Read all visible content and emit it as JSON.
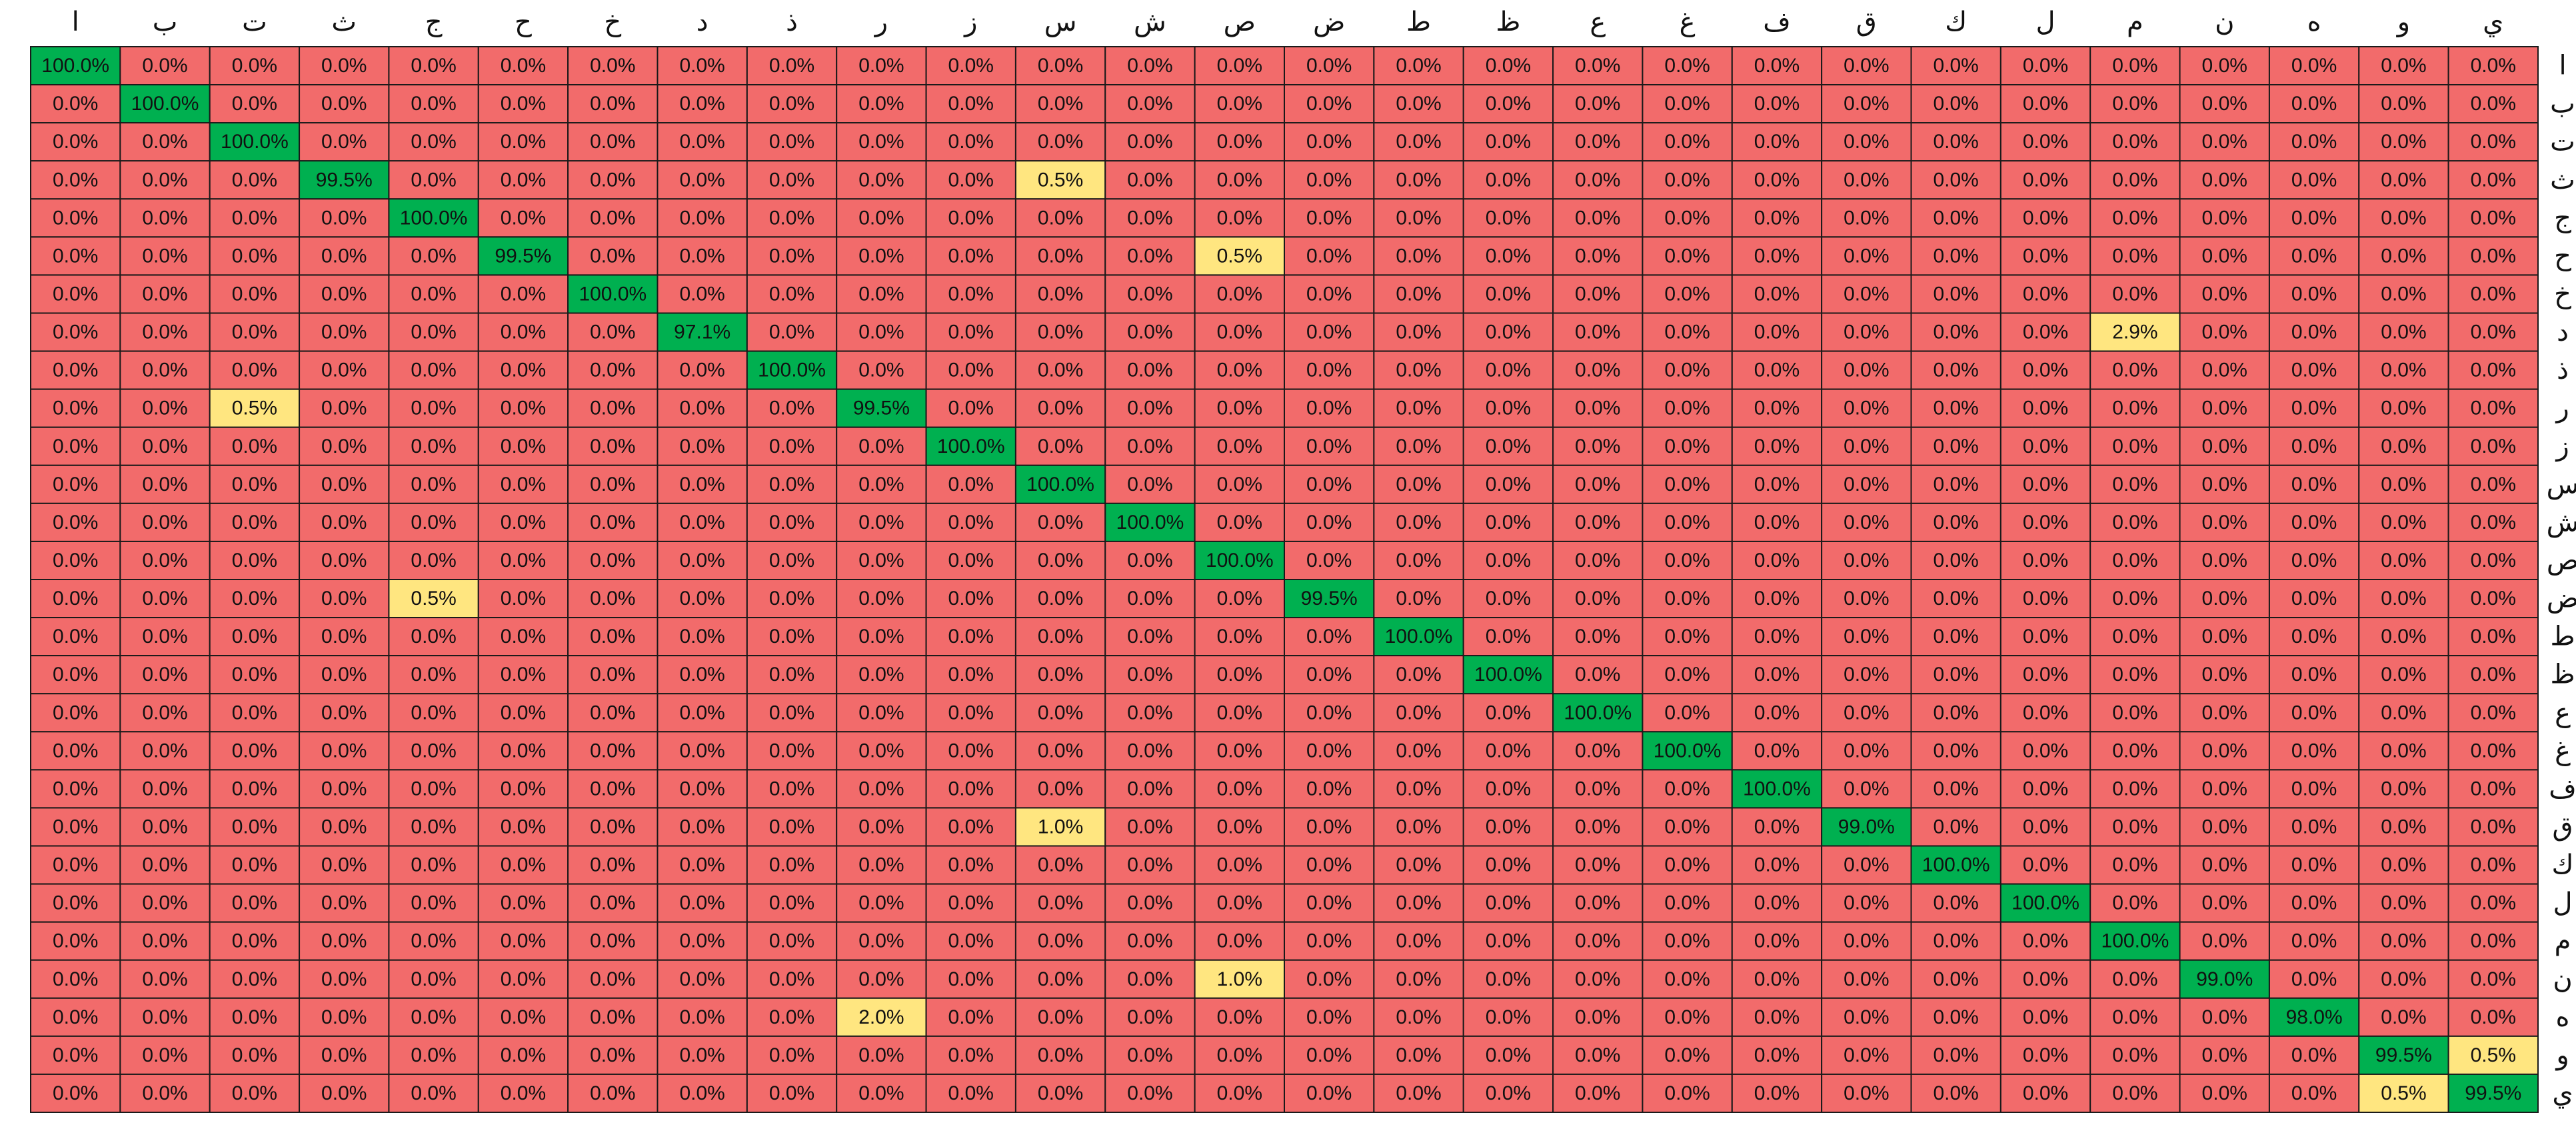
{
  "chart_data": {
    "type": "heatmap",
    "title": "",
    "xlabel": "",
    "ylabel": "",
    "categories": [
      "ا",
      "ب",
      "ت",
      "ث",
      "ج",
      "ح",
      "خ",
      "د",
      "ذ",
      "ر",
      "ز",
      "س",
      "ش",
      "ص",
      "ض",
      "ط",
      "ظ",
      "ع",
      "غ",
      "ف",
      "ق",
      "ك",
      "ل",
      "م",
      "ن",
      "ه",
      "و",
      "ي"
    ],
    "column_labels": [
      "ا",
      "ب",
      "ت",
      "ث",
      "ج",
      "ح",
      "خ",
      "د",
      "ذ",
      "ر",
      "ز",
      "س",
      "ش",
      "ص",
      "ض",
      "ط",
      "ظ",
      "ع",
      "غ",
      "ف",
      "ق",
      "ك",
      "ل",
      "م",
      "ن",
      "ه",
      "و",
      "ي"
    ],
    "row_labels": [
      "ا",
      "ب",
      "ت",
      "ث",
      "ج",
      "ح",
      "خ",
      "د",
      "ذ",
      "ر",
      "ز",
      "س",
      "ش",
      "ص",
      "ض",
      "ط",
      "ظ",
      "ع",
      "غ",
      "ف",
      "ق",
      "ك",
      "ل",
      "م",
      "ن",
      "ه",
      "و",
      "ي"
    ],
    "column_label_position": "top",
    "row_label_position": "right",
    "value_format": "percent-1-decimal",
    "colors": {
      "high": "#00b050",
      "low_nonzero": "#ffe680",
      "zero": "#f26b6b",
      "grid": "#1a1a1a",
      "text": "#111111"
    },
    "values": [
      [
        100.0,
        0.0,
        0.0,
        0.0,
        0.0,
        0.0,
        0.0,
        0.0,
        0.0,
        0.0,
        0.0,
        0.0,
        0.0,
        0.0,
        0.0,
        0.0,
        0.0,
        0.0,
        0.0,
        0.0,
        0.0,
        0.0,
        0.0,
        0.0,
        0.0,
        0.0,
        0.0,
        0.0
      ],
      [
        0.0,
        100.0,
        0.0,
        0.0,
        0.0,
        0.0,
        0.0,
        0.0,
        0.0,
        0.0,
        0.0,
        0.0,
        0.0,
        0.0,
        0.0,
        0.0,
        0.0,
        0.0,
        0.0,
        0.0,
        0.0,
        0.0,
        0.0,
        0.0,
        0.0,
        0.0,
        0.0,
        0.0
      ],
      [
        0.0,
        0.0,
        100.0,
        0.0,
        0.0,
        0.0,
        0.0,
        0.0,
        0.0,
        0.0,
        0.0,
        0.0,
        0.0,
        0.0,
        0.0,
        0.0,
        0.0,
        0.0,
        0.0,
        0.0,
        0.0,
        0.0,
        0.0,
        0.0,
        0.0,
        0.0,
        0.0,
        0.0
      ],
      [
        0.0,
        0.0,
        0.0,
        99.5,
        0.0,
        0.0,
        0.0,
        0.0,
        0.0,
        0.0,
        0.0,
        0.5,
        0.0,
        0.0,
        0.0,
        0.0,
        0.0,
        0.0,
        0.0,
        0.0,
        0.0,
        0.0,
        0.0,
        0.0,
        0.0,
        0.0,
        0.0,
        0.0
      ],
      [
        0.0,
        0.0,
        0.0,
        0.0,
        100.0,
        0.0,
        0.0,
        0.0,
        0.0,
        0.0,
        0.0,
        0.0,
        0.0,
        0.0,
        0.0,
        0.0,
        0.0,
        0.0,
        0.0,
        0.0,
        0.0,
        0.0,
        0.0,
        0.0,
        0.0,
        0.0,
        0.0,
        0.0
      ],
      [
        0.0,
        0.0,
        0.0,
        0.0,
        0.0,
        99.5,
        0.0,
        0.0,
        0.0,
        0.0,
        0.0,
        0.0,
        0.0,
        0.5,
        0.0,
        0.0,
        0.0,
        0.0,
        0.0,
        0.0,
        0.0,
        0.0,
        0.0,
        0.0,
        0.0,
        0.0,
        0.0,
        0.0
      ],
      [
        0.0,
        0.0,
        0.0,
        0.0,
        0.0,
        0.0,
        100.0,
        0.0,
        0.0,
        0.0,
        0.0,
        0.0,
        0.0,
        0.0,
        0.0,
        0.0,
        0.0,
        0.0,
        0.0,
        0.0,
        0.0,
        0.0,
        0.0,
        0.0,
        0.0,
        0.0,
        0.0,
        0.0
      ],
      [
        0.0,
        0.0,
        0.0,
        0.0,
        0.0,
        0.0,
        0.0,
        97.1,
        0.0,
        0.0,
        0.0,
        0.0,
        0.0,
        0.0,
        0.0,
        0.0,
        0.0,
        0.0,
        0.0,
        0.0,
        0.0,
        0.0,
        0.0,
        2.9,
        0.0,
        0.0,
        0.0,
        0.0
      ],
      [
        0.0,
        0.0,
        0.0,
        0.0,
        0.0,
        0.0,
        0.0,
        0.0,
        100.0,
        0.0,
        0.0,
        0.0,
        0.0,
        0.0,
        0.0,
        0.0,
        0.0,
        0.0,
        0.0,
        0.0,
        0.0,
        0.0,
        0.0,
        0.0,
        0.0,
        0.0,
        0.0,
        0.0
      ],
      [
        0.0,
        0.0,
        0.5,
        0.0,
        0.0,
        0.0,
        0.0,
        0.0,
        0.0,
        99.5,
        0.0,
        0.0,
        0.0,
        0.0,
        0.0,
        0.0,
        0.0,
        0.0,
        0.0,
        0.0,
        0.0,
        0.0,
        0.0,
        0.0,
        0.0,
        0.0,
        0.0,
        0.0
      ],
      [
        0.0,
        0.0,
        0.0,
        0.0,
        0.0,
        0.0,
        0.0,
        0.0,
        0.0,
        0.0,
        100.0,
        0.0,
        0.0,
        0.0,
        0.0,
        0.0,
        0.0,
        0.0,
        0.0,
        0.0,
        0.0,
        0.0,
        0.0,
        0.0,
        0.0,
        0.0,
        0.0,
        0.0
      ],
      [
        0.0,
        0.0,
        0.0,
        0.0,
        0.0,
        0.0,
        0.0,
        0.0,
        0.0,
        0.0,
        0.0,
        100.0,
        0.0,
        0.0,
        0.0,
        0.0,
        0.0,
        0.0,
        0.0,
        0.0,
        0.0,
        0.0,
        0.0,
        0.0,
        0.0,
        0.0,
        0.0,
        0.0
      ],
      [
        0.0,
        0.0,
        0.0,
        0.0,
        0.0,
        0.0,
        0.0,
        0.0,
        0.0,
        0.0,
        0.0,
        0.0,
        100.0,
        0.0,
        0.0,
        0.0,
        0.0,
        0.0,
        0.0,
        0.0,
        0.0,
        0.0,
        0.0,
        0.0,
        0.0,
        0.0,
        0.0,
        0.0
      ],
      [
        0.0,
        0.0,
        0.0,
        0.0,
        0.0,
        0.0,
        0.0,
        0.0,
        0.0,
        0.0,
        0.0,
        0.0,
        0.0,
        100.0,
        0.0,
        0.0,
        0.0,
        0.0,
        0.0,
        0.0,
        0.0,
        0.0,
        0.0,
        0.0,
        0.0,
        0.0,
        0.0,
        0.0
      ],
      [
        0.0,
        0.0,
        0.0,
        0.0,
        0.5,
        0.0,
        0.0,
        0.0,
        0.0,
        0.0,
        0.0,
        0.0,
        0.0,
        0.0,
        99.5,
        0.0,
        0.0,
        0.0,
        0.0,
        0.0,
        0.0,
        0.0,
        0.0,
        0.0,
        0.0,
        0.0,
        0.0,
        0.0
      ],
      [
        0.0,
        0.0,
        0.0,
        0.0,
        0.0,
        0.0,
        0.0,
        0.0,
        0.0,
        0.0,
        0.0,
        0.0,
        0.0,
        0.0,
        0.0,
        100.0,
        0.0,
        0.0,
        0.0,
        0.0,
        0.0,
        0.0,
        0.0,
        0.0,
        0.0,
        0.0,
        0.0,
        0.0
      ],
      [
        0.0,
        0.0,
        0.0,
        0.0,
        0.0,
        0.0,
        0.0,
        0.0,
        0.0,
        0.0,
        0.0,
        0.0,
        0.0,
        0.0,
        0.0,
        0.0,
        100.0,
        0.0,
        0.0,
        0.0,
        0.0,
        0.0,
        0.0,
        0.0,
        0.0,
        0.0,
        0.0,
        0.0
      ],
      [
        0.0,
        0.0,
        0.0,
        0.0,
        0.0,
        0.0,
        0.0,
        0.0,
        0.0,
        0.0,
        0.0,
        0.0,
        0.0,
        0.0,
        0.0,
        0.0,
        0.0,
        100.0,
        0.0,
        0.0,
        0.0,
        0.0,
        0.0,
        0.0,
        0.0,
        0.0,
        0.0,
        0.0
      ],
      [
        0.0,
        0.0,
        0.0,
        0.0,
        0.0,
        0.0,
        0.0,
        0.0,
        0.0,
        0.0,
        0.0,
        0.0,
        0.0,
        0.0,
        0.0,
        0.0,
        0.0,
        0.0,
        100.0,
        0.0,
        0.0,
        0.0,
        0.0,
        0.0,
        0.0,
        0.0,
        0.0,
        0.0
      ],
      [
        0.0,
        0.0,
        0.0,
        0.0,
        0.0,
        0.0,
        0.0,
        0.0,
        0.0,
        0.0,
        0.0,
        0.0,
        0.0,
        0.0,
        0.0,
        0.0,
        0.0,
        0.0,
        0.0,
        100.0,
        0.0,
        0.0,
        0.0,
        0.0,
        0.0,
        0.0,
        0.0,
        0.0
      ],
      [
        0.0,
        0.0,
        0.0,
        0.0,
        0.0,
        0.0,
        0.0,
        0.0,
        0.0,
        0.0,
        0.0,
        1.0,
        0.0,
        0.0,
        0.0,
        0.0,
        0.0,
        0.0,
        0.0,
        0.0,
        99.0,
        0.0,
        0.0,
        0.0,
        0.0,
        0.0,
        0.0,
        0.0
      ],
      [
        0.0,
        0.0,
        0.0,
        0.0,
        0.0,
        0.0,
        0.0,
        0.0,
        0.0,
        0.0,
        0.0,
        0.0,
        0.0,
        0.0,
        0.0,
        0.0,
        0.0,
        0.0,
        0.0,
        0.0,
        0.0,
        100.0,
        0.0,
        0.0,
        0.0,
        0.0,
        0.0,
        0.0
      ],
      [
        0.0,
        0.0,
        0.0,
        0.0,
        0.0,
        0.0,
        0.0,
        0.0,
        0.0,
        0.0,
        0.0,
        0.0,
        0.0,
        0.0,
        0.0,
        0.0,
        0.0,
        0.0,
        0.0,
        0.0,
        0.0,
        0.0,
        100.0,
        0.0,
        0.0,
        0.0,
        0.0,
        0.0
      ],
      [
        0.0,
        0.0,
        0.0,
        0.0,
        0.0,
        0.0,
        0.0,
        0.0,
        0.0,
        0.0,
        0.0,
        0.0,
        0.0,
        0.0,
        0.0,
        0.0,
        0.0,
        0.0,
        0.0,
        0.0,
        0.0,
        0.0,
        0.0,
        100.0,
        0.0,
        0.0,
        0.0,
        0.0
      ],
      [
        0.0,
        0.0,
        0.0,
        0.0,
        0.0,
        0.0,
        0.0,
        0.0,
        0.0,
        0.0,
        0.0,
        0.0,
        0.0,
        1.0,
        0.0,
        0.0,
        0.0,
        0.0,
        0.0,
        0.0,
        0.0,
        0.0,
        0.0,
        0.0,
        99.0,
        0.0,
        0.0,
        0.0
      ],
      [
        0.0,
        0.0,
        0.0,
        0.0,
        0.0,
        0.0,
        0.0,
        0.0,
        0.0,
        2.0,
        0.0,
        0.0,
        0.0,
        0.0,
        0.0,
        0.0,
        0.0,
        0.0,
        0.0,
        0.0,
        0.0,
        0.0,
        0.0,
        0.0,
        0.0,
        98.0,
        0.0,
        0.0
      ],
      [
        0.0,
        0.0,
        0.0,
        0.0,
        0.0,
        0.0,
        0.0,
        0.0,
        0.0,
        0.0,
        0.0,
        0.0,
        0.0,
        0.0,
        0.0,
        0.0,
        0.0,
        0.0,
        0.0,
        0.0,
        0.0,
        0.0,
        0.0,
        0.0,
        0.0,
        0.0,
        99.5,
        0.5
      ],
      [
        0.0,
        0.0,
        0.0,
        0.0,
        0.0,
        0.0,
        0.0,
        0.0,
        0.0,
        0.0,
        0.0,
        0.0,
        0.0,
        0.0,
        0.0,
        0.0,
        0.0,
        0.0,
        0.0,
        0.0,
        0.0,
        0.0,
        0.0,
        0.0,
        0.0,
        0.0,
        0.5,
        99.5
      ]
    ]
  }
}
